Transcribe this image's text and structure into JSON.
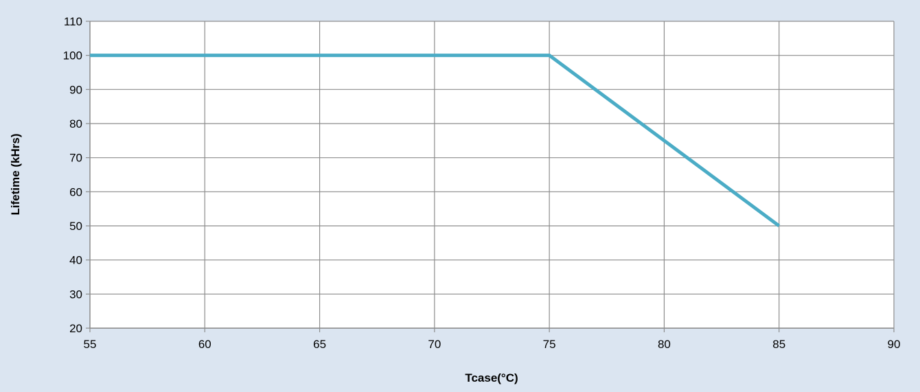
{
  "chart_data": {
    "type": "line",
    "title": "",
    "xlabel": "Tcase(°C)",
    "ylabel": "Lifetime (kHrs)",
    "xlim": [
      55,
      90
    ],
    "ylim": [
      20,
      110
    ],
    "x_ticks": [
      "55",
      "60",
      "65",
      "70",
      "75",
      "80",
      "85",
      "90"
    ],
    "y_ticks": [
      "20",
      "30",
      "40",
      "50",
      "60",
      "70",
      "80",
      "90",
      "100",
      "110"
    ],
    "grid": true,
    "legend": "none",
    "series": [
      {
        "x": [
          55,
          75,
          85
        ],
        "y": [
          100,
          100,
          50
        ],
        "color": "#4bacc6"
      }
    ],
    "colors": {
      "background": "#dbe5f1",
      "plot_area": "#ffffff",
      "grid": "#8c8c8c",
      "series": "#4bacc6"
    }
  }
}
